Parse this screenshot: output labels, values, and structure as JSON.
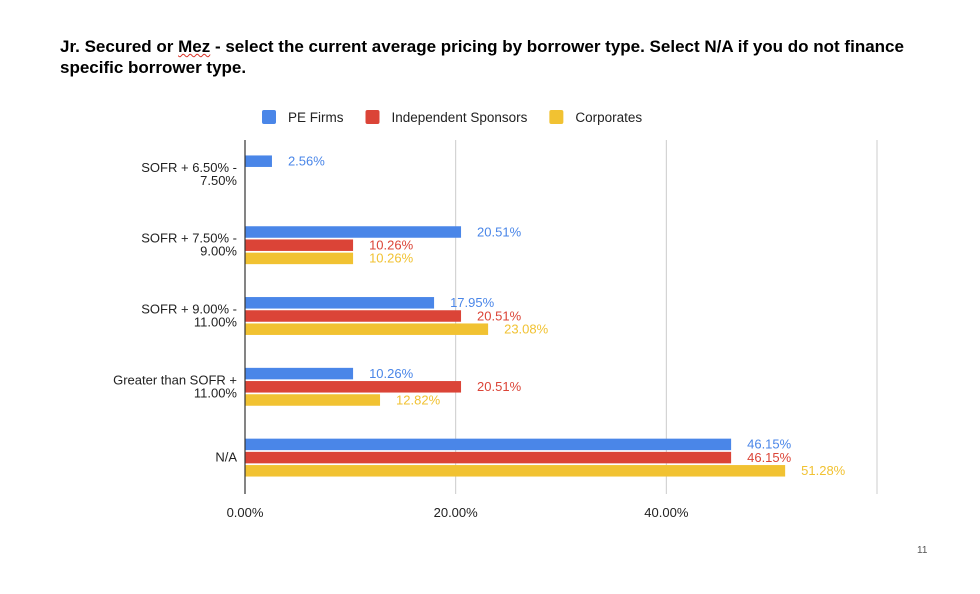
{
  "slide": {
    "title_part1": "Jr. Secured or ",
    "title_mez": "Mez",
    "title_part2": " - select the current average pricing by borrower type. Select N/A if you do not finance specific borrower type.",
    "page_number": "11"
  },
  "colors": {
    "pe_firms": "#4a86e8",
    "independent_sponsors": "#db4437",
    "corporates": "#f1c232",
    "gridline": "#cccccc",
    "axis": "#333333"
  },
  "chart_data": {
    "type": "bar",
    "orientation": "horizontal",
    "categories": [
      [
        "SOFR + 6.50% -",
        "7.50%"
      ],
      [
        "SOFR + 7.50% -",
        "9.00%"
      ],
      [
        "SOFR + 9.00% -",
        "11.00%"
      ],
      [
        "Greater than SOFR +",
        "11.00%"
      ],
      [
        "N/A"
      ]
    ],
    "series": [
      {
        "name": "PE Firms",
        "color": "#4a86e8",
        "values": [
          2.56,
          20.51,
          17.95,
          10.26,
          46.15
        ],
        "labels": [
          "2.56%",
          "20.51%",
          "17.95%",
          "10.26%",
          "46.15%"
        ]
      },
      {
        "name": "Independent Sponsors",
        "color": "#db4437",
        "values": [
          null,
          10.26,
          20.51,
          20.51,
          46.15
        ],
        "labels": [
          null,
          "10.26%",
          "20.51%",
          "20.51%",
          "46.15%"
        ]
      },
      {
        "name": "Corporates",
        "color": "#f1c232",
        "values": [
          null,
          10.26,
          23.08,
          12.82,
          51.28
        ],
        "labels": [
          null,
          "10.26%",
          "23.08%",
          "12.82%",
          "51.28%"
        ]
      }
    ],
    "xlim": [
      0,
      60
    ],
    "x_ticks": [
      0,
      20,
      40
    ],
    "x_tick_labels": [
      "0.00%",
      "20.00%",
      "40.00%"
    ],
    "gridlines": [
      20,
      40,
      60
    ],
    "legend_position": "top",
    "grid": true
  }
}
